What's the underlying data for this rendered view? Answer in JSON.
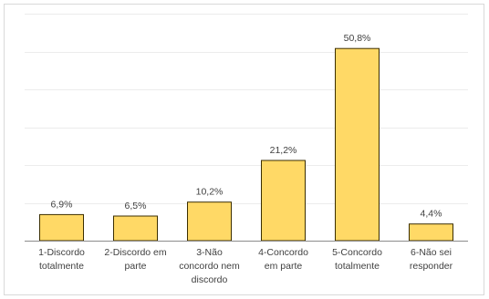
{
  "chart_data": {
    "type": "bar",
    "categories": [
      [
        "1-Discordo",
        "totalmente"
      ],
      [
        "2-Discordo em",
        "parte"
      ],
      [
        "3-Não",
        "concordo nem",
        "discordo"
      ],
      [
        "4-Concordo",
        "em parte"
      ],
      [
        "5-Concordo",
        "totalmente"
      ],
      [
        "6-Não sei",
        "responder"
      ]
    ],
    "values": [
      6.9,
      6.5,
      10.2,
      21.2,
      50.8,
      4.4
    ],
    "data_labels": [
      "6,9%",
      "6,5%",
      "10,2%",
      "21,2%",
      "50,8%",
      "4,4%"
    ],
    "ylim": [
      0,
      60
    ],
    "grid": true,
    "colors": {
      "bar_fill": "#FFD966",
      "bar_stroke": "#3B2E00",
      "grid": "#ECECEC",
      "axis": "#8C8C8C",
      "text": "#404040"
    }
  }
}
